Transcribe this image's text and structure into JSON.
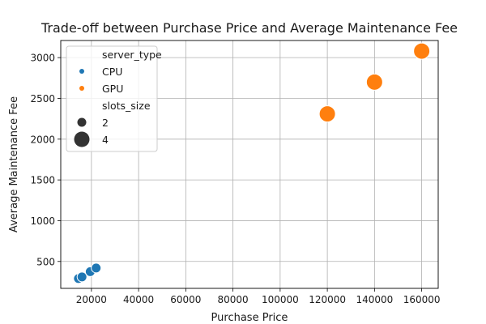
{
  "chart_data": {
    "type": "scatter",
    "title": "Trade-off between Purchase Price and Average Maintenance Fee",
    "xlabel": "Purchase Price",
    "ylabel": "Average Maintenance Fee",
    "xlim": [
      7000,
      167000
    ],
    "ylim": [
      170,
      3210
    ],
    "xticks": [
      20000,
      40000,
      60000,
      80000,
      100000,
      120000,
      140000,
      160000
    ],
    "yticks": [
      500,
      1000,
      1500,
      2000,
      2500,
      3000
    ],
    "grid": true,
    "legend_position": "top-left",
    "hue_title": "server_type",
    "size_title": "slots_size",
    "series": [
      {
        "name": "CPU",
        "color": "#1f77b4",
        "points": [
          {
            "x": 14500,
            "y": 290,
            "slots_size": 2
          },
          {
            "x": 16000,
            "y": 310,
            "slots_size": 2
          },
          {
            "x": 19500,
            "y": 375,
            "slots_size": 2
          },
          {
            "x": 22000,
            "y": 420,
            "slots_size": 2
          }
        ]
      },
      {
        "name": "GPU",
        "color": "#ff7f0e",
        "points": [
          {
            "x": 120000,
            "y": 2310,
            "slots_size": 4
          },
          {
            "x": 140000,
            "y": 2700,
            "slots_size": 4
          },
          {
            "x": 160000,
            "y": 3080,
            "slots_size": 4
          }
        ]
      }
    ],
    "size_legend": [
      {
        "label": "2",
        "slots_size": 2
      },
      {
        "label": "4",
        "slots_size": 4
      }
    ]
  }
}
